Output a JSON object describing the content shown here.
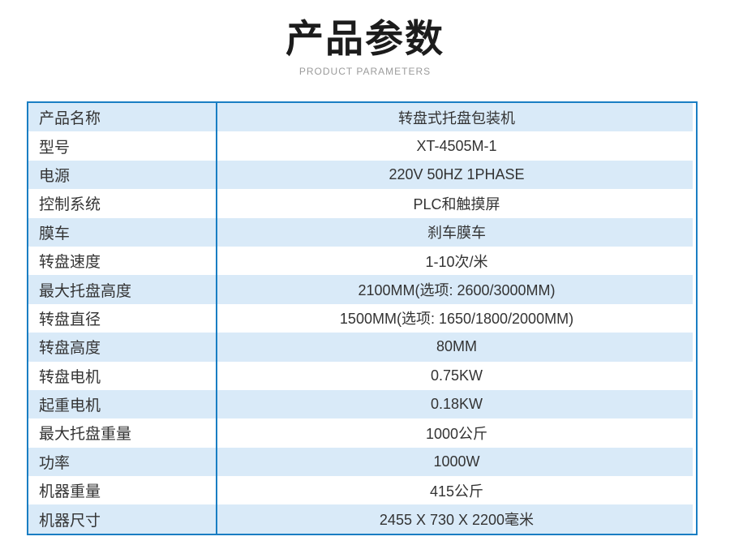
{
  "page": {
    "title": "产品参数",
    "subtitle": "PRODUCT PARAMETERS"
  },
  "colors": {
    "border_blue": "#1a7ec3",
    "stripe_blue": "#d9eaf8",
    "text": "#333333",
    "title_black": "#1c1c1c",
    "subtitle_gray": "#9b9b9b"
  },
  "table": {
    "rows": [
      {
        "label": "产品名称",
        "value": "转盘式托盘包装机"
      },
      {
        "label": "型号",
        "value": "XT-4505M-1"
      },
      {
        "label": "电源",
        "value": "220V 50HZ 1PHASE"
      },
      {
        "label": "控制系统",
        "value": "PLC和触摸屏"
      },
      {
        "label": "膜车",
        "value": "刹车膜车"
      },
      {
        "label": "转盘速度",
        "value": "1-10次/米"
      },
      {
        "label": "最大托盘高度",
        "value": "2100MM(选项: 2600/3000MM)"
      },
      {
        "label": "转盘直径",
        "value": "1500MM(选项: 1650/1800/2000MM)"
      },
      {
        "label": "转盘高度",
        "value": "80MM"
      },
      {
        "label": "转盘电机",
        "value": "0.75KW"
      },
      {
        "label": "起重电机",
        "value": "0.18KW"
      },
      {
        "label": "最大托盘重量",
        "value": "1000公斤"
      },
      {
        "label": "功率",
        "value": "1000W"
      },
      {
        "label": "机器重量",
        "value": "415公斤"
      },
      {
        "label": "机器尺寸",
        "value": "2455 X 730 X 2200毫米"
      }
    ]
  }
}
